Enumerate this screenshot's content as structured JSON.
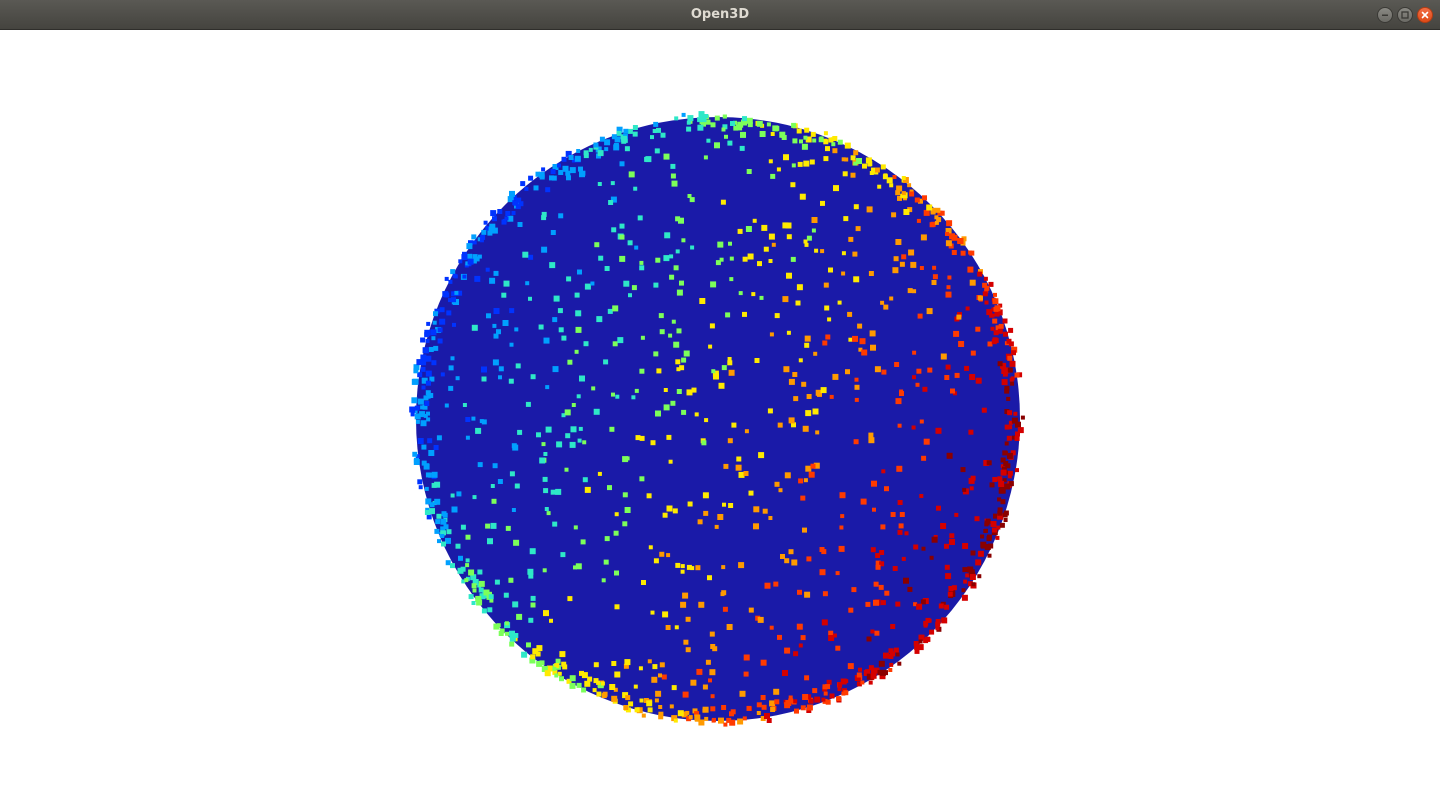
{
  "window": {
    "title": "Open3D",
    "controls": {
      "minimize_icon": "minimize-icon",
      "maximize_icon": "maximize-icon",
      "close_icon": "close-icon"
    }
  },
  "scene": {
    "object": "sphere-point-cloud",
    "background_color": "#ffffff",
    "sphere_color": "#1a1aa8",
    "colormap": [
      "#0033ff",
      "#00a0ff",
      "#2ee8c8",
      "#7cff5a",
      "#ffea00",
      "#ff9a00",
      "#ff3a00",
      "#d40000",
      "#8a0000"
    ]
  }
}
